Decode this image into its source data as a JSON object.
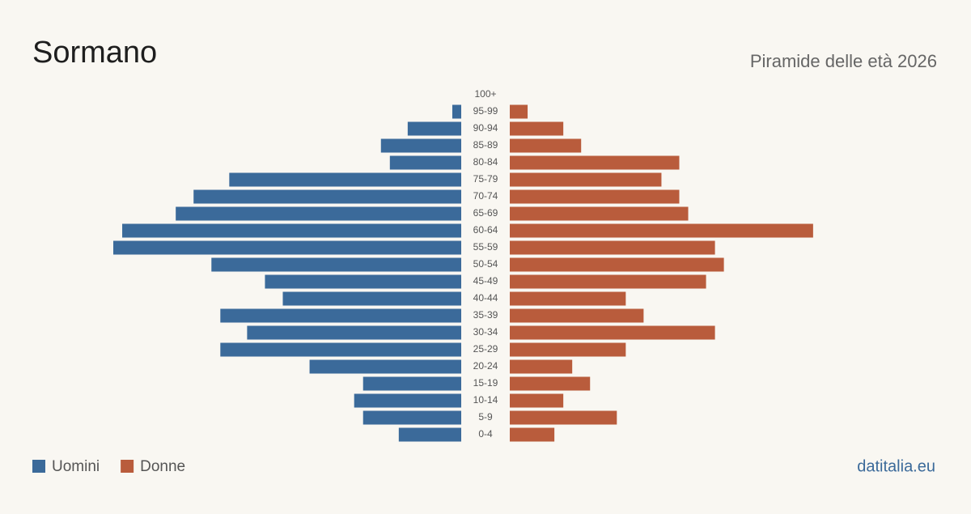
{
  "chart_data": {
    "type": "pyramid",
    "title": "Sormano",
    "subtitle": "Piramide delle età 2026",
    "source": "datitalia.eu",
    "categories": [
      "100+",
      "95-99",
      "90-94",
      "85-89",
      "80-84",
      "75-79",
      "70-74",
      "65-69",
      "60-64",
      "55-59",
      "50-54",
      "45-49",
      "40-44",
      "35-39",
      "30-34",
      "25-29",
      "20-24",
      "15-19",
      "10-14",
      "5-9",
      "0-4"
    ],
    "series": [
      {
        "name": "Uomini",
        "color": "#3b6a9a",
        "values": [
          0,
          1,
          6,
          9,
          8,
          26,
          30,
          32,
          38,
          39,
          28,
          22,
          20,
          27,
          24,
          27,
          17,
          11,
          12,
          11,
          7
        ]
      },
      {
        "name": "Donne",
        "color": "#b95c3c",
        "values": [
          0,
          2,
          6,
          8,
          19,
          17,
          19,
          20,
          34,
          23,
          24,
          22,
          13,
          15,
          23,
          13,
          7,
          9,
          6,
          12,
          5
        ]
      }
    ]
  }
}
